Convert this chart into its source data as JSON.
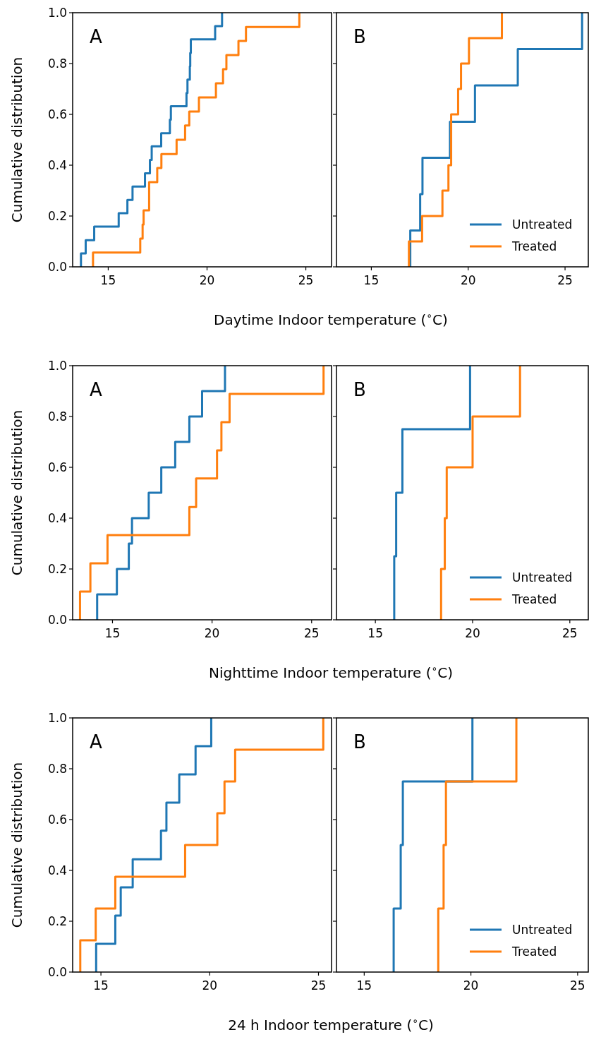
{
  "chart_data": [
    {
      "type": "step",
      "xlabel": "Daytime Indoor temperature ($^{∘}$C)",
      "ylabel": "Cumulative distribution",
      "annotations": [
        "A"
      ],
      "xlim": [
        13.2,
        26.3
      ],
      "xticks": [
        15,
        20,
        25
      ],
      "ylim": [
        0,
        1
      ],
      "yticks": [
        {
          "value": 0,
          "label": "0.0"
        },
        {
          "value": 0.2,
          "label": "0.2"
        },
        {
          "value": 0.4,
          "label": "0.4"
        },
        {
          "value": 0.6,
          "label": "0.6"
        },
        {
          "value": 0.8,
          "label": "0.8"
        },
        {
          "value": 1,
          "label": "1.0"
        }
      ],
      "grid": false,
      "legend": false,
      "series": [
        {
          "color": "#1f77b4",
          "x": [
            13.62,
            13.62,
            13.86,
            14.29,
            15.53,
            15.97,
            16.23,
            16.86,
            17.11,
            17.2,
            17.68,
            18.12,
            18.17,
            18.96,
            19.01,
            19.13,
            19.15,
            19.18,
            20.41,
            20.76
          ],
          "values": [
            0,
            0.053,
            0.105,
            0.158,
            0.211,
            0.263,
            0.316,
            0.368,
            0.421,
            0.474,
            0.526,
            0.579,
            0.632,
            0.684,
            0.737,
            0.789,
            0.842,
            0.895,
            0.947,
            1
          ]
        },
        {
          "color": "#ff7f0e",
          "x": [
            14.23,
            14.23,
            16.62,
            16.74,
            16.79,
            17.07,
            17.07,
            17.48,
            17.69,
            18.46,
            18.89,
            19.1,
            19.59,
            20.45,
            20.81,
            20.98,
            21.59,
            21.97,
            24.67
          ],
          "values": [
            0,
            0.056,
            0.111,
            0.167,
            0.222,
            0.278,
            0.333,
            0.389,
            0.444,
            0.5,
            0.556,
            0.611,
            0.667,
            0.722,
            0.778,
            0.833,
            0.889,
            0.944,
            1
          ]
        }
      ]
    },
    {
      "type": "step",
      "annotations": [
        "B"
      ],
      "xlim": [
        13.2,
        26.2
      ],
      "xticks": [
        15,
        20,
        25
      ],
      "ylim": [
        0,
        1
      ],
      "yticks": [
        {
          "value": 0,
          "label": null
        },
        {
          "value": 0.2,
          "label": null
        },
        {
          "value": 0.4,
          "label": null
        },
        {
          "value": 0.6,
          "label": null
        },
        {
          "value": 0.8,
          "label": null
        },
        {
          "value": 1,
          "label": null
        }
      ],
      "tick_labels": "x",
      "grid": false,
      "legend": "bottom right",
      "series": [
        {
          "name": "Untreated",
          "color": "#1f77b4",
          "x": [
            17.01,
            17.01,
            17.52,
            17.64,
            19.06,
            20.35,
            22.56,
            25.88
          ],
          "values": [
            0,
            0.143,
            0.286,
            0.429,
            0.571,
            0.714,
            0.857,
            1
          ]
        },
        {
          "name": "Treated",
          "color": "#ff7f0e",
          "x": [
            16.94,
            16.94,
            17.62,
            18.67,
            18.98,
            19.12,
            19.12,
            19.48,
            19.63,
            20.04,
            21.74
          ],
          "values": [
            0,
            0.1,
            0.2,
            0.3,
            0.4,
            0.5,
            0.6,
            0.7,
            0.8,
            0.9,
            1
          ]
        }
      ]
    },
    {
      "type": "step",
      "xlabel": "Nighttime Indoor temperature ($^{∘}$C)",
      "ylabel": "Cumulative distribution",
      "annotations": [
        "A"
      ],
      "xlim": [
        13.0,
        26.0
      ],
      "xticks": [
        15,
        20,
        25
      ],
      "ylim": [
        0,
        1
      ],
      "yticks": [
        {
          "value": 0,
          "label": "0.0"
        },
        {
          "value": 0.2,
          "label": "0.2"
        },
        {
          "value": 0.4,
          "label": "0.4"
        },
        {
          "value": 0.6,
          "label": "0.6"
        },
        {
          "value": 0.8,
          "label": "0.8"
        },
        {
          "value": 1,
          "label": "1.0"
        }
      ],
      "grid": false,
      "legend": false,
      "series": [
        {
          "color": "#1f77b4",
          "x": [
            14.23,
            14.23,
            15.22,
            15.82,
            15.98,
            16.82,
            17.45,
            18.15,
            18.86,
            19.5,
            20.65
          ],
          "values": [
            0,
            0.1,
            0.2,
            0.3,
            0.4,
            0.5,
            0.6,
            0.7,
            0.8,
            0.9,
            1
          ]
        },
        {
          "color": "#ff7f0e",
          "x": [
            13.37,
            13.37,
            13.89,
            14.75,
            18.86,
            19.2,
            20.25,
            20.47,
            20.88,
            25.6
          ],
          "values": [
            0,
            0.111,
            0.222,
            0.333,
            0.444,
            0.556,
            0.667,
            0.778,
            0.889,
            1
          ]
        }
      ]
    },
    {
      "type": "step",
      "annotations": [
        "B"
      ],
      "xlim": [
        13.0,
        25.95
      ],
      "xticks": [
        15,
        20,
        25
      ],
      "ylim": [
        0,
        1
      ],
      "yticks": [
        {
          "value": 0,
          "label": null
        },
        {
          "value": 0.2,
          "label": null
        },
        {
          "value": 0.4,
          "label": null
        },
        {
          "value": 0.6,
          "label": null
        },
        {
          "value": 0.8,
          "label": null
        },
        {
          "value": 1,
          "label": null
        }
      ],
      "tick_labels": "x",
      "grid": false,
      "legend": "bottom right",
      "series": [
        {
          "name": "Untreated",
          "color": "#1f77b4",
          "x": [
            15.97,
            15.97,
            16.07,
            16.39,
            19.87
          ],
          "values": [
            0,
            0.25,
            0.5,
            0.75,
            1
          ]
        },
        {
          "name": "Treated",
          "color": "#ff7f0e",
          "x": [
            18.38,
            18.38,
            18.57,
            18.67,
            20.0,
            22.44
          ],
          "values": [
            0,
            0.2,
            0.4,
            0.6,
            0.8,
            1
          ]
        }
      ]
    },
    {
      "type": "step",
      "xlabel": "24 h Indoor temperature ($^{∘}$C)",
      "ylabel": "Cumulative distribution",
      "annotations": [
        "A"
      ],
      "xlim": [
        13.7,
        25.6
      ],
      "xticks": [
        15,
        20,
        25
      ],
      "ylim": [
        0,
        1
      ],
      "yticks": [
        {
          "value": 0,
          "label": "0.0"
        },
        {
          "value": 0.2,
          "label": "0.2"
        },
        {
          "value": 0.4,
          "label": "0.4"
        },
        {
          "value": 0.6,
          "label": "0.6"
        },
        {
          "value": 0.8,
          "label": "0.8"
        },
        {
          "value": 1,
          "label": "1.0"
        }
      ],
      "grid": false,
      "legend": false,
      "series": [
        {
          "color": "#1f77b4",
          "x": [
            14.78,
            14.78,
            15.66,
            15.91,
            16.46,
            17.76,
            18.01,
            18.6,
            19.35,
            20.07
          ],
          "values": [
            0,
            0.111,
            0.222,
            0.333,
            0.444,
            0.556,
            0.667,
            0.778,
            0.889,
            1
          ]
        },
        {
          "color": "#ff7f0e",
          "x": [
            14.05,
            14.05,
            14.76,
            15.66,
            18.87,
            20.35,
            20.68,
            21.17,
            25.22
          ],
          "values": [
            0,
            0.125,
            0.25,
            0.375,
            0.5,
            0.625,
            0.75,
            0.875,
            1
          ]
        }
      ]
    },
    {
      "type": "step",
      "annotations": [
        "B"
      ],
      "xlim": [
        13.7,
        25.5
      ],
      "xticks": [
        15,
        20,
        25
      ],
      "ylim": [
        0,
        1
      ],
      "yticks": [
        {
          "value": 0,
          "label": null
        },
        {
          "value": 0.2,
          "label": null
        },
        {
          "value": 0.4,
          "label": null
        },
        {
          "value": 0.6,
          "label": null
        },
        {
          "value": 0.8,
          "label": null
        },
        {
          "value": 1,
          "label": null
        }
      ],
      "tick_labels": "x",
      "grid": false,
      "legend": "bottom right",
      "series": [
        {
          "name": "Untreated",
          "color": "#1f77b4",
          "x": [
            16.38,
            16.38,
            16.71,
            16.81,
            20.07
          ],
          "values": [
            0,
            0.25,
            0.5,
            0.75,
            1
          ]
        },
        {
          "name": "Treated",
          "color": "#ff7f0e",
          "x": [
            18.47,
            18.47,
            18.72,
            18.83,
            22.13
          ],
          "values": [
            0,
            0.25,
            0.5,
            0.75,
            1
          ]
        }
      ]
    }
  ]
}
